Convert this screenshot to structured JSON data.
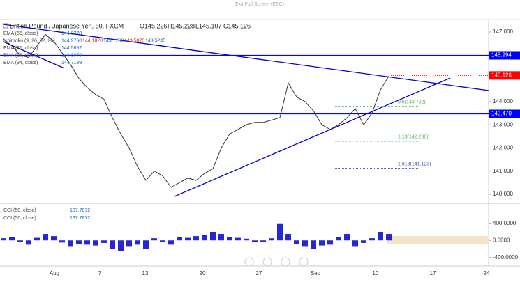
{
  "header": {
    "exit": "Exit Full Screen (ESC)"
  },
  "legend": {
    "symbol": "British Pound / Japanese Yen, 60, FXCM",
    "ohlc": [
      "O145.226",
      "H145.228",
      "L145.107",
      "C145.126"
    ],
    "indicators": [
      {
        "name": "EMA (55, close)",
        "values": [
          "144.0770"
        ]
      },
      {
        "name": "Ichimoku (9, 26, 52, 26)",
        "values": [
          "144.9760",
          "144.1820",
          "145.1280",
          "143.5070",
          "143.5245"
        ]
      },
      {
        "name": "EMA (21, close)",
        "values": [
          "144.5657"
        ]
      },
      {
        "name": "EMA (13, close)",
        "values": [
          "144.8079"
        ]
      },
      {
        "name": "EMA (34, close)",
        "values": [
          "144.7189"
        ]
      }
    ]
  },
  "price": {
    "ylim": [
      139.67,
      147.54
    ],
    "yticks": [
      {
        "value": 147,
        "label": "147.000"
      },
      {
        "value": 144,
        "label": "144.000"
      },
      {
        "value": 143,
        "label": "143.000"
      },
      {
        "value": 142,
        "label": "142.000"
      },
      {
        "value": 141,
        "label": "141.000"
      },
      {
        "value": 140,
        "label": "140.000"
      }
    ],
    "closes": [
      146.7,
      146.4,
      146.0,
      145.9,
      146.4,
      146.9,
      146.6,
      146.1,
      145.6,
      145.0,
      144.6,
      144.3,
      144.1,
      143.3,
      142.6,
      142.0,
      141.2,
      140.6,
      141.0,
      140.8,
      140.3,
      140.5,
      140.7,
      140.6,
      140.9,
      141.1,
      142.0,
      142.6,
      142.8,
      143.0,
      143.1,
      143.1,
      143.2,
      143.3,
      144.8,
      144.2,
      144.0,
      143.6,
      143.0,
      142.8,
      143.0,
      143.3,
      143.7,
      143.0,
      143.5,
      144.5,
      145.1
    ],
    "color": "#333333",
    "levels": [
      {
        "value": 145.994,
        "label": "145.994",
        "color": "#0000ff"
      },
      {
        "value": 143.47,
        "label": "143.470",
        "color": "#0000ff"
      }
    ],
    "last": {
      "value": 145.126,
      "label": "145.126",
      "color": "#ff0000"
    },
    "fib": [
      {
        "value": 143.792,
        "label": "0.5(143.792)",
        "color": "#4caf50"
      },
      {
        "value": 142.288,
        "label": "1.13(142.288)",
        "color": "#4caf50"
      },
      {
        "value": 141.123,
        "label": "1.618(141.123)",
        "color": "#3f51b5"
      }
    ]
  },
  "cci": {
    "legend": [
      {
        "name": "CCI (50, close)",
        "value": "137.7872"
      },
      {
        "name": "CCI (50, close)",
        "value": "137.7872"
      }
    ],
    "ylim": [
      -600,
      820
    ],
    "yticks": [
      {
        "value": 400,
        "label": "400.0000"
      },
      {
        "value": 0,
        "label": "0.0000"
      },
      {
        "value": -400,
        "label": "-400.0000"
      }
    ],
    "values": [
      50,
      80,
      -40,
      -100,
      60,
      150,
      100,
      -50,
      -150,
      -80,
      -100,
      -120,
      -60,
      -200,
      -250,
      -150,
      -100,
      -200,
      50,
      -30,
      -100,
      80,
      60,
      100,
      120,
      200,
      150,
      80,
      60,
      40,
      -30,
      -40,
      50,
      400,
      150,
      -80,
      -150,
      -200,
      -120,
      -100,
      80,
      150,
      -150,
      -60,
      50,
      200,
      150
    ],
    "color": "#0000cc"
  },
  "xaxis": {
    "ticks": [
      "Aug",
      "7",
      "13",
      "20",
      "27",
      "Sep",
      "10",
      "17",
      "24"
    ]
  }
}
